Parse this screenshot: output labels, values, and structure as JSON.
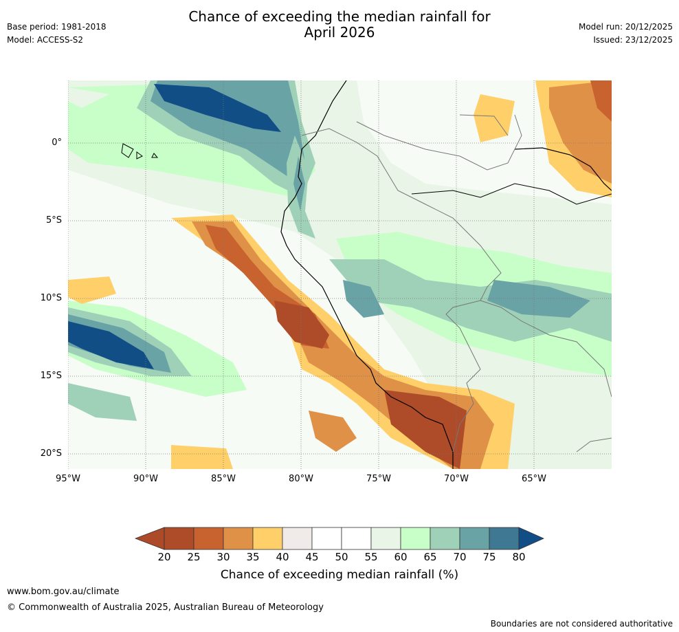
{
  "header": {
    "title_line1": "Chance of exceeding the median rainfall for",
    "title_line2": "April 2026",
    "base_period": "Base period: 1981-2018",
    "model": "Model: ACCESS-S2",
    "model_run": "Model run: 20/12/2025",
    "issued": "Issued: 23/12/2025"
  },
  "map": {
    "region": "Western South America and adjacent Pacific",
    "lat_labels": [
      "0°",
      "5°S",
      "10°S",
      "15°S",
      "20°S"
    ],
    "lon_labels": [
      "95°W",
      "90°W",
      "85°W",
      "80°W",
      "75°W",
      "70°W",
      "65°W"
    ],
    "lat_values": [
      0,
      -5,
      -10,
      -15,
      -20
    ],
    "lon_values": [
      -95,
      -90,
      -85,
      -80,
      -75,
      -70,
      -65
    ],
    "extent": {
      "lon_min": -95,
      "lon_max": -60,
      "lat_min": -21,
      "lat_max": 4
    }
  },
  "colorbar": {
    "ticks": [
      "20",
      "25",
      "30",
      "35",
      "40",
      "45",
      "50",
      "55",
      "60",
      "65",
      "70",
      "75",
      "80"
    ],
    "colors": [
      "#ad4a28",
      "#ae4b29",
      "#c8622f",
      "#df9147",
      "#ffd06a",
      "#f0ebe8",
      "#ffffff",
      "#ffffff",
      "#e9f5e6",
      "#c8fec8",
      "#9ed1b8",
      "#6aa3a6",
      "#3f7893",
      "#124e86"
    ],
    "label": "Chance of exceeding median rainfall (%)"
  },
  "footer": {
    "url": "www.bom.gov.au/climate",
    "copyright": "© Commonwealth of Australia 2025, Australian Bureau of Meteorology",
    "disclaimer": "Boundaries are not considered authoritative"
  }
}
